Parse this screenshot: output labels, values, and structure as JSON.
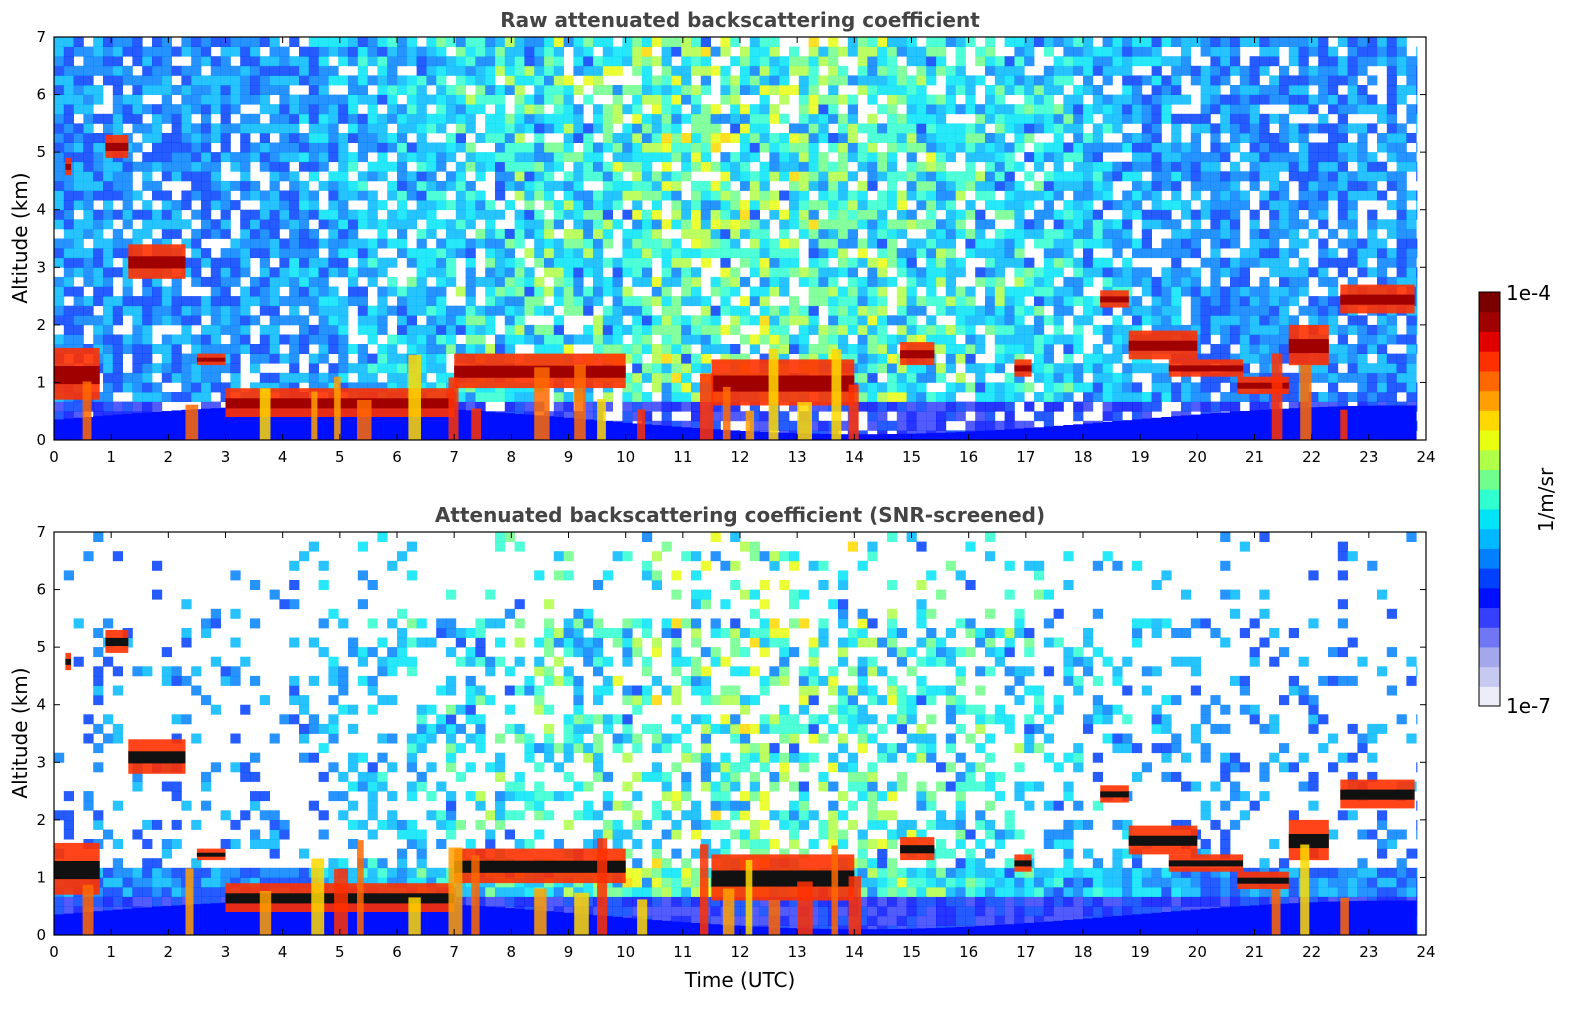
{
  "chart_data": [
    {
      "type": "heatmap",
      "title": "Raw attenuated backscattering coefficient",
      "xlabel": "",
      "ylabel": "Altitude (km)",
      "xlim": [
        0,
        24
      ],
      "ylim": [
        0,
        7
      ],
      "xticks": [
        "0",
        "1",
        "2",
        "3",
        "4",
        "5",
        "6",
        "7",
        "8",
        "9",
        "10",
        "11",
        "12",
        "13",
        "14",
        "15",
        "16",
        "17",
        "18",
        "19",
        "20",
        "21",
        "22",
        "23",
        "24"
      ],
      "yticks": [
        "0",
        "1",
        "2",
        "3",
        "4",
        "5",
        "6",
        "7"
      ],
      "colormap": "jet",
      "screened": false,
      "cloud_layers": [
        {
          "t0": 0.2,
          "t1": 0.3,
          "alt0": 4.6,
          "alt1": 4.9
        },
        {
          "t0": 0.9,
          "t1": 1.3,
          "alt0": 4.9,
          "alt1": 5.3
        },
        {
          "t0": 1.3,
          "t1": 2.3,
          "alt0": 2.8,
          "alt1": 3.4
        },
        {
          "t0": 0.0,
          "t1": 0.8,
          "alt0": 0.7,
          "alt1": 1.6
        },
        {
          "t0": 2.5,
          "t1": 3.0,
          "alt0": 1.3,
          "alt1": 1.5
        },
        {
          "t0": 3.0,
          "t1": 7.0,
          "alt0": 0.4,
          "alt1": 0.9
        },
        {
          "t0": 7.0,
          "t1": 10.0,
          "alt0": 0.9,
          "alt1": 1.5
        },
        {
          "t0": 11.5,
          "t1": 14.0,
          "alt0": 0.6,
          "alt1": 1.4
        },
        {
          "t0": 14.8,
          "t1": 15.4,
          "alt0": 1.3,
          "alt1": 1.7
        },
        {
          "t0": 16.8,
          "t1": 17.1,
          "alt0": 1.1,
          "alt1": 1.4
        },
        {
          "t0": 18.3,
          "t1": 18.8,
          "alt0": 2.3,
          "alt1": 2.6
        },
        {
          "t0": 18.8,
          "t1": 20.0,
          "alt0": 1.4,
          "alt1": 1.9
        },
        {
          "t0": 19.5,
          "t1": 20.8,
          "alt0": 1.1,
          "alt1": 1.4
        },
        {
          "t0": 20.7,
          "t1": 21.6,
          "alt0": 0.8,
          "alt1": 1.1
        },
        {
          "t0": 21.6,
          "t1": 22.3,
          "alt0": 1.3,
          "alt1": 2.0
        },
        {
          "t0": 22.5,
          "t1": 23.8,
          "alt0": 2.2,
          "alt1": 2.7
        }
      ]
    },
    {
      "type": "heatmap",
      "title": "Attenuated backscattering coefficient (SNR-screened)",
      "xlabel": "Time (UTC)",
      "ylabel": "Altitude (km)",
      "xlim": [
        0,
        24
      ],
      "ylim": [
        0,
        7
      ],
      "xticks": [
        "0",
        "1",
        "2",
        "3",
        "4",
        "5",
        "6",
        "7",
        "8",
        "9",
        "10",
        "11",
        "12",
        "13",
        "14",
        "15",
        "16",
        "17",
        "18",
        "19",
        "20",
        "21",
        "22",
        "23",
        "24"
      ],
      "yticks": [
        "0",
        "1",
        "2",
        "3",
        "4",
        "5",
        "6",
        "7"
      ],
      "colormap": "jet",
      "screened": true
    }
  ],
  "colorbar": {
    "label": "1/m/sr",
    "max_label": "1e-4",
    "min_label": "1e-7",
    "colors": [
      "#ecedf9",
      "#c6c9f0",
      "#a3a8ec",
      "#7076f4",
      "#3440fb",
      "#0010ff",
      "#0040ff",
      "#0080ff",
      "#00b8ff",
      "#00e4f8",
      "#30ffd0",
      "#70ff8c",
      "#b0ff48",
      "#e8ff10",
      "#ffd800",
      "#ffa000",
      "#ff6800",
      "#ff3000",
      "#e00000",
      "#a00000",
      "#7a0000"
    ]
  }
}
